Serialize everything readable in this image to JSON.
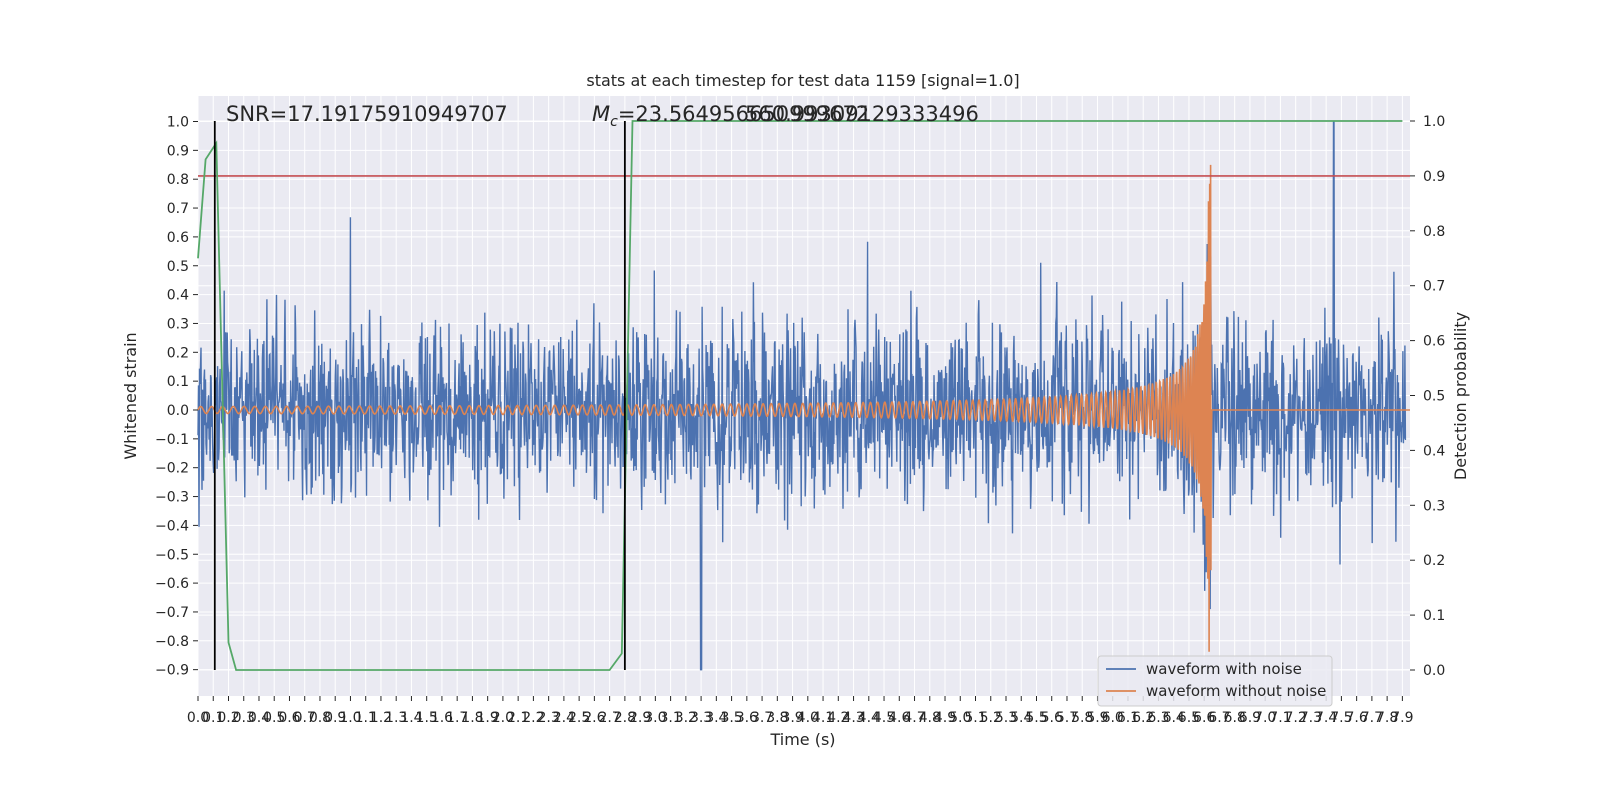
{
  "chart_data": {
    "type": "line",
    "title": "stats at each timestep for test data 1159 [signal=1.0]",
    "xlabel": "Time (s)",
    "ylabel": "Whitened strain",
    "y2label": "Detection probability",
    "xlim": [
      0.0,
      7.95
    ],
    "ylim": [
      -0.96,
      1.05
    ],
    "y2lim": [
      -0.05,
      1.05
    ],
    "x_ticks": [
      0.0,
      0.1,
      0.2,
      0.3,
      0.4,
      0.5,
      0.6,
      0.7,
      0.8,
      0.9,
      1.0,
      1.1,
      1.2,
      1.3,
      1.4,
      1.5,
      1.6,
      1.7,
      1.8,
      1.9,
      2.0,
      2.1,
      2.2,
      2.3,
      2.4,
      2.5,
      2.6,
      2.7,
      2.8,
      2.9,
      3.0,
      3.1,
      3.2,
      3.3,
      3.4,
      3.5,
      3.6,
      3.7,
      3.8,
      3.9,
      4.0,
      4.1,
      4.2,
      4.3,
      4.4,
      4.5,
      4.6,
      4.7,
      4.8,
      4.9,
      5.0,
      5.1,
      5.2,
      5.3,
      5.4,
      5.5,
      5.6,
      5.7,
      5.8,
      5.9,
      6.0,
      6.1,
      6.2,
      6.3,
      6.4,
      6.5,
      6.6,
      6.7,
      6.8,
      6.9,
      7.0,
      7.1,
      7.2,
      7.3,
      7.4,
      7.5,
      7.6,
      7.7,
      7.8,
      7.9
    ],
    "y_ticks": [
      1.0,
      0.9,
      0.8,
      0.7,
      0.6,
      0.5,
      0.4,
      0.3,
      0.2,
      0.1,
      0.0,
      -0.1,
      -0.2,
      -0.3,
      -0.4,
      -0.5,
      -0.6,
      -0.7,
      -0.8,
      -0.9
    ],
    "y2_ticks": [
      1.0,
      0.9,
      0.8,
      0.7,
      0.6,
      0.5,
      0.4,
      0.3,
      0.2,
      0.1,
      0.0
    ],
    "series": [
      {
        "name": "waveform with noise",
        "color": "#4c72b0",
        "envelope_abs": 0.45,
        "peak_max": 1.0,
        "peak_min": -0.9
      },
      {
        "name": "waveform without noise",
        "color": "#dd8452",
        "merger_time": 6.65,
        "amplitude_start": 0.012,
        "amplitude_peak": 0.85
      }
    ],
    "detection_probability": {
      "color": "#55a868",
      "x": [
        0.0,
        0.05,
        0.12,
        0.2,
        0.25,
        2.7,
        2.78,
        2.85,
        7.9
      ],
      "y": [
        0.75,
        0.93,
        0.96,
        0.05,
        0.0,
        0.0,
        0.03,
        1.0,
        1.0
      ]
    },
    "threshold_line": {
      "color": "#c44e52",
      "value": 0.9
    },
    "vertical_markers": [
      0.11,
      2.8
    ],
    "annotations": {
      "snr": "SNR=17.19175910949707",
      "mc_prefix": "M",
      "mc_sub": "c",
      "mc_value": "=23.564956650999672",
      "overlap": "560.99309129333496"
    },
    "legend_position": "lower right",
    "grid": true
  }
}
